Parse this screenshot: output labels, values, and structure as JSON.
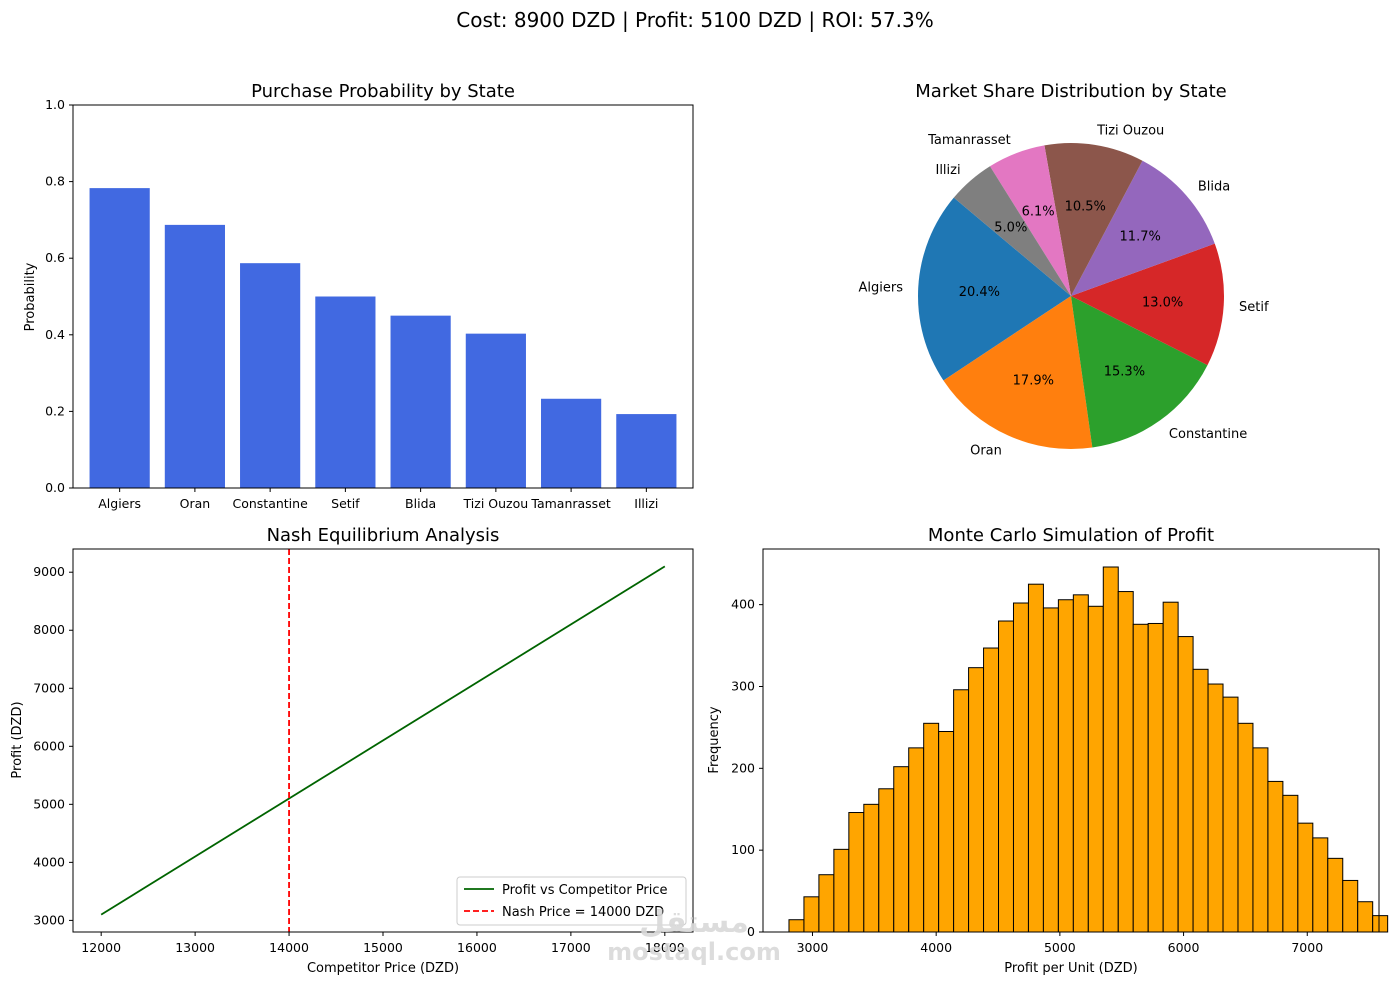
{
  "suptitle": "Cost: 8900 DZD | Profit: 5100 DZD | ROI: 57.3%",
  "watermark": {
    "line1": "مستقل",
    "line2": "mostaql.com"
  },
  "chart_data": [
    {
      "type": "bar",
      "title": "Purchase Probability by State",
      "xlabel": "",
      "ylabel": "Probability",
      "categories": [
        "Algiers",
        "Oran",
        "Constantine",
        "Setif",
        "Blida",
        "Tizi Ouzou",
        "Tamanrasset",
        "Illizi"
      ],
      "values": [
        0.783,
        0.687,
        0.587,
        0.5,
        0.45,
        0.403,
        0.233,
        0.193
      ],
      "ylim": [
        0,
        1.0
      ],
      "yticks": [
        0.0,
        0.2,
        0.4,
        0.6,
        0.8,
        1.0
      ],
      "color": "#4169e1",
      "grid": false
    },
    {
      "type": "pie",
      "title": "Market Share Distribution by State",
      "labels": [
        "Algiers",
        "Oran",
        "Constantine",
        "Setif",
        "Blida",
        "Tizi Ouzou",
        "Tamanrasset",
        "Illizi"
      ],
      "values": [
        20.4,
        17.9,
        15.3,
        13.0,
        11.7,
        10.5,
        6.1,
        5.0
      ],
      "pct_labels": [
        "20.4%",
        "17.9%",
        "15.3%",
        "13.0%",
        "11.7%",
        "10.5%",
        "6.1%",
        "5.0%"
      ],
      "colors": [
        "#1f77b4",
        "#ff7f0e",
        "#2ca02c",
        "#d62728",
        "#9467bd",
        "#8c564b",
        "#e377c2",
        "#7f7f7f"
      ],
      "startangle": 140
    },
    {
      "type": "line",
      "title": "Nash Equilibrium Analysis",
      "xlabel": "Competitor Price (DZD)",
      "ylabel": "Profit (DZD)",
      "xlim": [
        11700,
        18300
      ],
      "ylim": [
        2800,
        9400
      ],
      "xticks": [
        12000,
        13000,
        14000,
        15000,
        16000,
        17000,
        18000
      ],
      "yticks": [
        3000,
        4000,
        5000,
        6000,
        7000,
        8000,
        9000
      ],
      "series": [
        {
          "name": "Profit vs Competitor Price",
          "x": [
            12000,
            18000
          ],
          "y": [
            3100,
            9100
          ],
          "color": "#006400",
          "style": "solid"
        },
        {
          "name": "Nash Price = 14000 DZD",
          "vline": 14000,
          "color": "#ff0000",
          "style": "dashed"
        }
      ],
      "legend": "lower-right",
      "grid": false
    },
    {
      "type": "bar",
      "title": "Monte Carlo Simulation of Profit",
      "xlabel": "Profit per Unit (DZD)",
      "ylabel": "Frequency",
      "bin_start": 2810,
      "bin_width": 121,
      "values": [
        15,
        43,
        70,
        101,
        146,
        156,
        175,
        202,
        225,
        255,
        245,
        296,
        323,
        347,
        380,
        402,
        425,
        396,
        406,
        412,
        398,
        446,
        416,
        376,
        377,
        403,
        361,
        321,
        303,
        287,
        255,
        225,
        184,
        167,
        133,
        115,
        90,
        63,
        37,
        20
      ],
      "xlim": [
        2600,
        7580
      ],
      "ylim": [
        0,
        468
      ],
      "xticks": [
        3000,
        4000,
        5000,
        6000,
        7000
      ],
      "yticks": [
        0,
        100,
        200,
        300,
        400
      ],
      "color": "#ffa500",
      "edgecolor": "#000000",
      "grid": false
    }
  ]
}
